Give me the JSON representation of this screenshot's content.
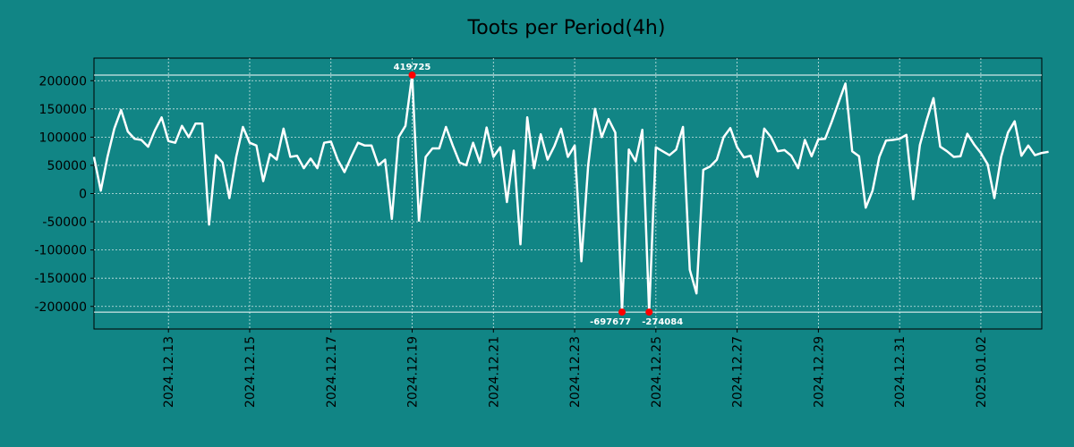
{
  "chart_data": {
    "type": "line",
    "title": "Toots per Period(4h)",
    "xlabel": "",
    "ylabel": "",
    "grid": true,
    "colors": {
      "background": "#118585",
      "line": "#ffffff",
      "marker": "#ff0000",
      "grid": "#cfe6e6"
    },
    "x_range": [
      "2024-12-11 04:00",
      "2025-01-03 12:00"
    ],
    "ylim": [
      -240000,
      240000
    ],
    "x_ticks": [
      "2024.12.13",
      "2024.12.15",
      "2024.12.17",
      "2024.12.19",
      "2024.12.21",
      "2024.12.23",
      "2024.12.25",
      "2024.12.27",
      "2024.12.29",
      "2024.12.31",
      "2025.01.02"
    ],
    "y_ticks": [
      200000,
      150000,
      100000,
      50000,
      0,
      -50000,
      -100000,
      -150000,
      -200000
    ],
    "clip_lines": [
      210000,
      -210000
    ],
    "annotations": [
      {
        "label": "419725",
        "x": "2024-12-19 00:00",
        "y": 210000,
        "position": "above"
      },
      {
        "label": "-697677",
        "x": "2024-12-24 04:00",
        "y": -210000,
        "position": "below-left"
      },
      {
        "label": "-274084",
        "x": "2024-12-24 20:00",
        "y": -210000,
        "position": "below-right"
      }
    ],
    "series": [
      {
        "x_start": "2024-12-11 04:00",
        "x_step_hours": 4,
        "values": [
          65000,
          5000,
          65000,
          115000,
          148000,
          110000,
          97000,
          95000,
          83000,
          112000,
          135000,
          93000,
          90000,
          120000,
          100000,
          124000,
          124000,
          -55000,
          68000,
          55000,
          -8000,
          65000,
          118000,
          90000,
          85000,
          22000,
          70000,
          60000,
          115000,
          65000,
          67000,
          45000,
          62000,
          45000,
          90000,
          92000,
          60000,
          38000,
          65000,
          90000,
          85000,
          85000,
          50000,
          60000,
          -45000,
          100000,
          120000,
          210000,
          -48000,
          65000,
          80000,
          80000,
          118000,
          85000,
          55000,
          50000,
          90000,
          55000,
          117000,
          65000,
          82000,
          -15000,
          76000,
          -90000,
          135000,
          45000,
          105000,
          60000,
          84000,
          115000,
          65000,
          85000,
          -120000,
          50000,
          150000,
          100000,
          132000,
          108000,
          -210000,
          78000,
          57000,
          113000,
          -210000,
          82000,
          75000,
          68000,
          78000,
          118000,
          -135000,
          -177000,
          42000,
          48000,
          60000,
          100000,
          116000,
          82000,
          64000,
          67000,
          30000,
          115000,
          100000,
          75000,
          77000,
          67000,
          45000,
          95000,
          66000,
          96000,
          97000,
          128000,
          162000,
          195000,
          75000,
          66000,
          -25000,
          5000,
          65000,
          94000,
          95000,
          97000,
          104000,
          -10000,
          86000,
          130000,
          169000,
          83000,
          75000,
          65000,
          66000,
          106000,
          87000,
          72000,
          52000,
          -8000,
          65000,
          108000,
          128000,
          67000,
          85000,
          68000,
          72000,
          74000
        ]
      }
    ]
  }
}
